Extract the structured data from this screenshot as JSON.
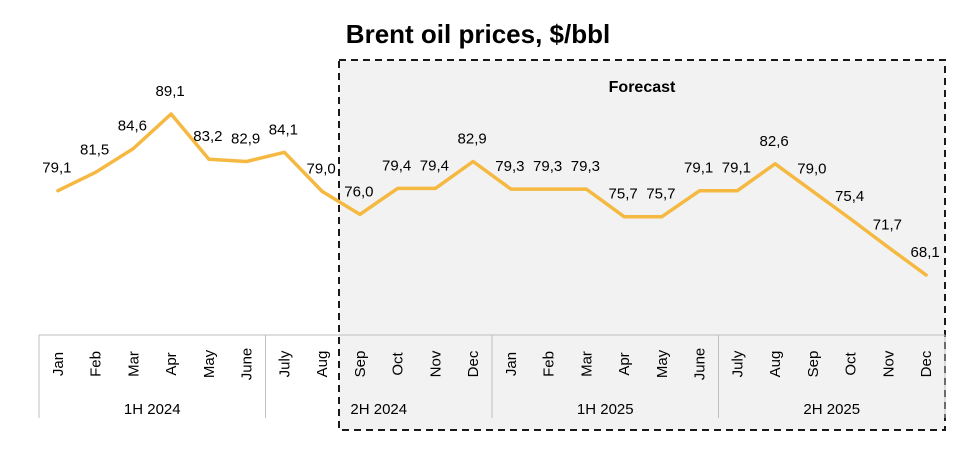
{
  "chart_data": {
    "type": "line",
    "title": "Brent oil prices, $/bbl",
    "forecast_label": "Forecast",
    "forecast_start_index": 8,
    "categories": [
      "Jan",
      "Feb",
      "Mar",
      "Apr",
      "May",
      "June",
      "July",
      "Aug",
      "Sep",
      "Oct",
      "Nov",
      "Dec",
      "Jan",
      "Feb",
      "Mar",
      "Apr",
      "May",
      "June",
      "July",
      "Aug",
      "Sep",
      "Oct",
      "Nov",
      "Dec"
    ],
    "series": [
      {
        "name": "Brent",
        "color": "#f5b942",
        "values": [
          79.1,
          81.5,
          84.6,
          89.1,
          83.2,
          82.9,
          84.1,
          79.0,
          76.0,
          79.4,
          79.4,
          82.9,
          79.3,
          79.3,
          79.3,
          75.7,
          75.7,
          79.1,
          79.1,
          82.6,
          79.0,
          75.4,
          71.7,
          68.1
        ],
        "labels": [
          "79,1",
          "81,5",
          "84,6",
          "89,1",
          "83,2",
          "82,9",
          "84,1",
          "79,0",
          "76,0",
          "79,4",
          "79,4",
          "82,9",
          "79,3",
          "79,3",
          "79,3",
          "75,7",
          "75,7",
          "79,1",
          "79,1",
          "82,6",
          "79,0",
          "75,4",
          "71,7",
          "68,1"
        ]
      }
    ],
    "periods": [
      {
        "label": "1H 2024",
        "start": 0,
        "end": 5
      },
      {
        "label": "2H 2024",
        "start": 6,
        "end": 11
      },
      {
        "label": "1H 2025",
        "start": 12,
        "end": 17
      },
      {
        "label": "2H 2025",
        "start": 18,
        "end": 23
      }
    ],
    "ylim": [
      55,
      92
    ],
    "xlabel": "",
    "ylabel": "",
    "grid": false
  }
}
